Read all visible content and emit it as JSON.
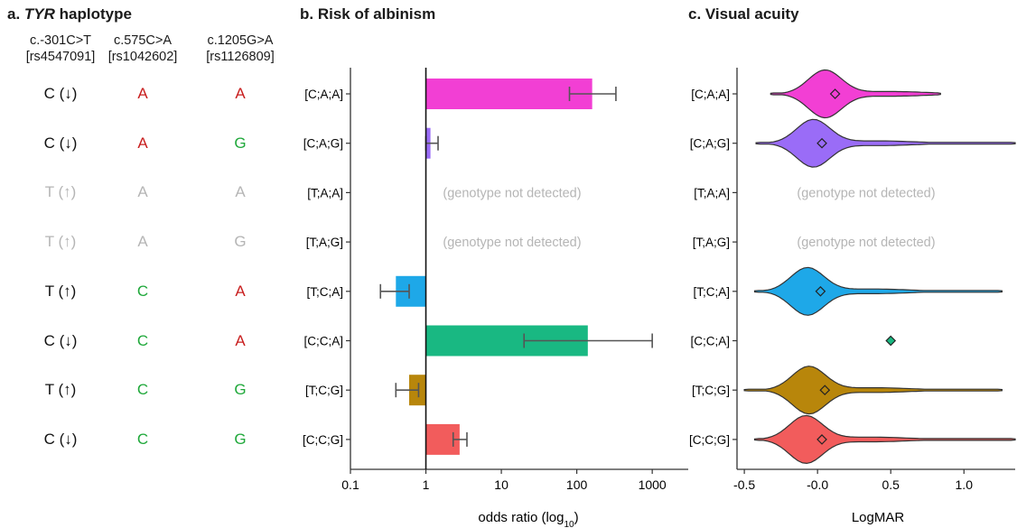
{
  "panel_a": {
    "letter": "a.",
    "italic_word": "TYR",
    "title_rest": " haplotype",
    "columns": [
      {
        "name": "c.-301C>T",
        "rs": "[rs4547091]"
      },
      {
        "name": "c.575C>A",
        "rs": "[rs1042602]"
      },
      {
        "name": "c.1205G>A",
        "rs": "[rs1126809]"
      }
    ],
    "rows": [
      {
        "cells": [
          {
            "text": "C (↓)",
            "style": "black"
          },
          {
            "text": "A",
            "style": "red"
          },
          {
            "text": "A",
            "style": "red"
          }
        ]
      },
      {
        "cells": [
          {
            "text": "C (↓)",
            "style": "black"
          },
          {
            "text": "A",
            "style": "red"
          },
          {
            "text": "G",
            "style": "green"
          }
        ]
      },
      {
        "cells": [
          {
            "text": "T (↑)",
            "style": "gray"
          },
          {
            "text": "A",
            "style": "gray"
          },
          {
            "text": "A",
            "style": "gray"
          }
        ]
      },
      {
        "cells": [
          {
            "text": "T (↑)",
            "style": "gray"
          },
          {
            "text": "A",
            "style": "gray"
          },
          {
            "text": "G",
            "style": "gray"
          }
        ]
      },
      {
        "cells": [
          {
            "text": "T (↑)",
            "style": "black"
          },
          {
            "text": "C",
            "style": "green"
          },
          {
            "text": "A",
            "style": "red"
          }
        ]
      },
      {
        "cells": [
          {
            "text": "C (↓)",
            "style": "black"
          },
          {
            "text": "C",
            "style": "green"
          },
          {
            "text": "A",
            "style": "red"
          }
        ]
      },
      {
        "cells": [
          {
            "text": "T (↑)",
            "style": "black"
          },
          {
            "text": "C",
            "style": "green"
          },
          {
            "text": "G",
            "style": "green"
          }
        ]
      },
      {
        "cells": [
          {
            "text": "C (↓)",
            "style": "black"
          },
          {
            "text": "C",
            "style": "green"
          },
          {
            "text": "G",
            "style": "green"
          }
        ]
      }
    ]
  },
  "colors": {
    "red": "#c81e1e",
    "green": "#1fa83a",
    "gray": "#b5b5b5",
    "series": [
      "#f23fd4",
      "#9a6cf7",
      "#b5b5b5",
      "#b5b5b5",
      "#1ea8e8",
      "#19b882",
      "#b8860b",
      "#f25c5c"
    ]
  },
  "chart_data": [
    {
      "type": "bar",
      "title": "b. Risk of albinism",
      "xlabel": "odds ratio (log",
      "xlabel_sub": "10",
      "xlabel_close": ")",
      "x_scale": "log",
      "xlim": [
        0.1,
        3000
      ],
      "reference_line": 1,
      "xticks": [
        0.1,
        1,
        10,
        100,
        1000
      ],
      "xtick_labels": [
        "0.1",
        "1",
        "10",
        "100",
        "1000"
      ],
      "categories": [
        "[C;A;A]",
        "[C;A;G]",
        "[T;A;A]",
        "[T;A;G]",
        "[T;C;A]",
        "[C;C;A]",
        "[T;C;G]",
        "[C;C;G]"
      ],
      "values": [
        160,
        1.15,
        null,
        null,
        0.4,
        140,
        0.6,
        2.8
      ],
      "ci_low": [
        80,
        1.0,
        null,
        null,
        0.25,
        20,
        0.4,
        2.3
      ],
      "ci_high": [
        330,
        1.45,
        null,
        null,
        0.6,
        1000,
        0.8,
        3.5
      ],
      "not_detected_label": "(genotype not detected)"
    },
    {
      "type": "violin",
      "title": "c. Visual acuity",
      "xlabel": "LogMAR",
      "xlim": [
        -0.55,
        1.35
      ],
      "xticks": [
        -0.5,
        0.0,
        0.5,
        1.0
      ],
      "xtick_labels": [
        "-0.5",
        "-0.0",
        "0.5",
        "1.0"
      ],
      "categories": [
        "[C;A;A]",
        "[C;A;G]",
        "[T;A;A]",
        "[T;A;G]",
        "[T;C;A]",
        "[C;C;A]",
        "[T;C;G]",
        "[C;C;G]"
      ],
      "means": [
        0.12,
        0.03,
        null,
        null,
        0.02,
        0.5,
        0.05,
        0.03
      ],
      "ranges": [
        [
          -0.32,
          0.84
        ],
        [
          -0.42,
          1.35
        ],
        null,
        null,
        [
          -0.43,
          1.26
        ],
        null,
        [
          -0.5,
          1.26
        ],
        [
          -0.43,
          1.35
        ]
      ],
      "modes": [
        0.05,
        -0.03,
        null,
        null,
        -0.07,
        null,
        -0.06,
        -0.08
      ],
      "not_detected_label": "(genotype not detected)"
    }
  ]
}
